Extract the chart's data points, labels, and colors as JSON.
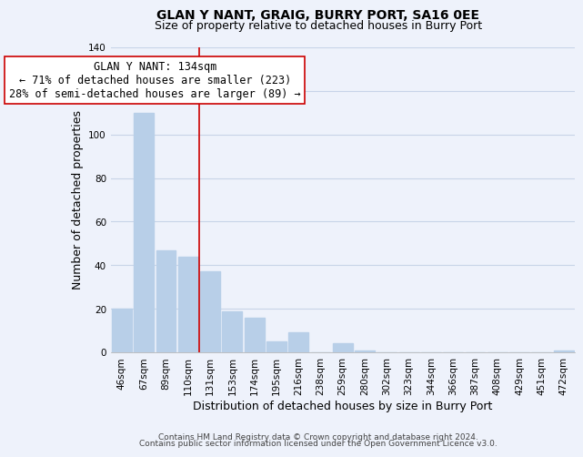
{
  "title": "GLAN Y NANT, GRAIG, BURRY PORT, SA16 0EE",
  "subtitle": "Size of property relative to detached houses in Burry Port",
  "xlabel": "Distribution of detached houses by size in Burry Port",
  "ylabel": "Number of detached properties",
  "bar_labels": [
    "46sqm",
    "67sqm",
    "89sqm",
    "110sqm",
    "131sqm",
    "153sqm",
    "174sqm",
    "195sqm",
    "216sqm",
    "238sqm",
    "259sqm",
    "280sqm",
    "302sqm",
    "323sqm",
    "344sqm",
    "366sqm",
    "387sqm",
    "408sqm",
    "429sqm",
    "451sqm",
    "472sqm"
  ],
  "bar_values": [
    20,
    110,
    47,
    44,
    37,
    19,
    16,
    5,
    9,
    0,
    4,
    1,
    0,
    0,
    0,
    0,
    0,
    0,
    0,
    0,
    1
  ],
  "bar_color": "#b8cfe8",
  "highlight_line_color": "#cc0000",
  "highlight_idx": 4,
  "annotation_line1": "GLAN Y NANT: 134sqm",
  "annotation_line2": "← 71% of detached houses are smaller (223)",
  "annotation_line3": "28% of semi-detached houses are larger (89) →",
  "annotation_box_color": "#ffffff",
  "annotation_box_edge_color": "#cc0000",
  "ylim": [
    0,
    140
  ],
  "yticks": [
    0,
    20,
    40,
    60,
    80,
    100,
    120,
    140
  ],
  "footer_line1": "Contains HM Land Registry data © Crown copyright and database right 2024.",
  "footer_line2": "Contains public sector information licensed under the Open Government Licence v3.0.",
  "background_color": "#eef2fb",
  "grid_color": "#c8d4e8",
  "title_fontsize": 10,
  "subtitle_fontsize": 9,
  "axis_label_fontsize": 9,
  "tick_fontsize": 7.5,
  "annotation_fontsize": 8.5,
  "footer_fontsize": 6.5
}
